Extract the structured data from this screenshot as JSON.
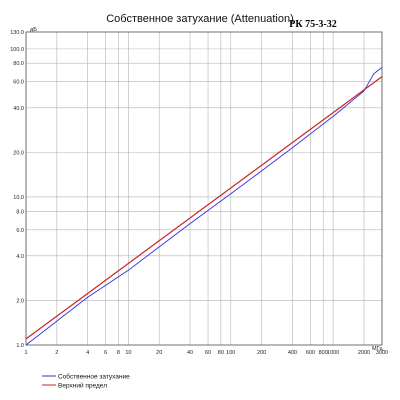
{
  "chart_data": {
    "type": "line",
    "title": "Собственное затухание (Attenuation)",
    "subtitle": "РК 75-3-32",
    "xlabel": "МГц",
    "ylabel": "дБ",
    "x_scale": "log",
    "y_scale": "log",
    "xlim": [
      1,
      3000
    ],
    "ylim": [
      1,
      130
    ],
    "grid": true,
    "x_ticks": [
      1,
      2,
      4,
      6,
      8,
      10,
      20,
      40,
      60,
      80,
      100,
      200,
      400,
      600,
      800,
      1000,
      2000,
      3000
    ],
    "x_tick_labels": [
      "1",
      "2",
      "4",
      "6",
      "8",
      "10",
      "20",
      "40",
      "60",
      "80",
      "100",
      "200",
      "400",
      "600",
      "800",
      "1000",
      "2000",
      "3000"
    ],
    "y_ticks": [
      1,
      2,
      4,
      6,
      8,
      10,
      20,
      40,
      60,
      80,
      100,
      130
    ],
    "y_tick_labels": [
      "1.0",
      "2.0",
      "4.0",
      "6.0",
      "8.0",
      "10.0",
      "20.0",
      "40.0",
      "60.0",
      "80.0",
      "100.0",
      "130.0"
    ],
    "legend_position": "bottom-left",
    "series": [
      {
        "name": "Собственное затухание",
        "color": "#3333dd",
        "x": [
          1,
          2,
          4,
          10,
          20,
          40,
          100,
          200,
          400,
          1000,
          2000,
          2500,
          3000
        ],
        "y": [
          1.0,
          1.45,
          2.1,
          3.2,
          4.6,
          6.6,
          10.5,
          15.0,
          21.5,
          35.0,
          52.0,
          68.0,
          75.0
        ]
      },
      {
        "name": "Верхний предел",
        "color": "#cc2222",
        "x": [
          1,
          3000
        ],
        "y": [
          1.1,
          65.0
        ]
      }
    ]
  }
}
